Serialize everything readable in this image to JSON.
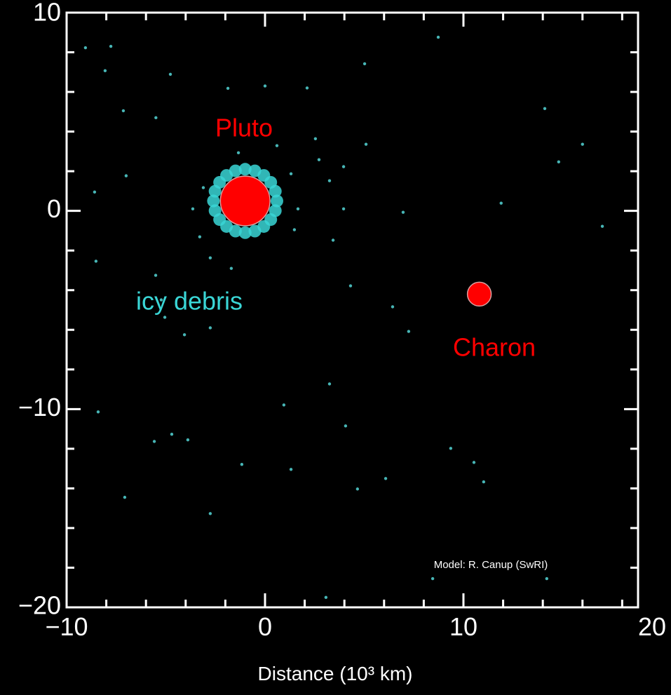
{
  "chart_data": {
    "type": "scatter",
    "xlabel": "Distance (10³ km)",
    "xlim": [
      -10,
      18.8
    ],
    "ylim": [
      -20,
      10
    ],
    "xticks": [
      {
        "value": -10,
        "label": "−10"
      },
      0,
      10,
      20
    ],
    "yticks": [
      {
        "value": -20,
        "label": "−20"
      },
      {
        "value": -10,
        "label": "−10"
      },
      0,
      10
    ],
    "xminorticks": [
      -8,
      -6,
      -4,
      -2,
      2,
      4,
      6,
      8,
      12,
      14,
      16,
      18
    ],
    "yminorticks": [
      -18,
      -16,
      -14,
      -12,
      -8,
      -6,
      -4,
      -2,
      2,
      4,
      6,
      8
    ],
    "series": [
      {
        "color": "#4fc9c9",
        "x": [
          -9.05,
          -7.77,
          -8.06,
          -4.77,
          -7.14,
          -5.5,
          -1.87,
          0,
          2.12,
          5.09,
          5.02,
          8.73,
          14.1,
          16.0,
          14.8,
          11.9,
          17.0,
          -8.59,
          -7.0,
          -8.52,
          -5.51,
          -3.29,
          -2.76,
          -4.06,
          -5.05,
          -8.41,
          -4.7,
          -5.58,
          -3.89,
          -7.07,
          -2.76,
          -1.17,
          1.31,
          0.95,
          3.25,
          4.06,
          4.66,
          6.08,
          9.36,
          10.53,
          11.02,
          7.24,
          6.43,
          4.31,
          3.43,
          3.96,
          6.96,
          3.07,
          14.2,
          8.45,
          3.96,
          2.54,
          2.72,
          1.66,
          1.48,
          -1.7,
          -5.23,
          -2.76,
          -3.64,
          -3.11,
          -1.34,
          0.6,
          1.31,
          3.25
        ],
        "values": [
          8.23,
          8.3,
          7.07,
          6.89,
          5.05,
          4.7,
          6.18,
          6.3,
          6.2,
          3.36,
          7.42,
          8.76,
          5.16,
          3.36,
          2.47,
          0.39,
          -0.78,
          0.95,
          1.77,
          -2.54,
          -3.25,
          -1.31,
          -5.9,
          -6.25,
          -5.37,
          -10.14,
          -11.27,
          -11.63,
          -11.55,
          -14.45,
          -15.27,
          -12.79,
          -13.04,
          -9.79,
          -8.73,
          -10.85,
          -14.03,
          -13.5,
          -11.98,
          -12.69,
          -13.67,
          -6.08,
          -4.84,
          -3.78,
          -1.48,
          0.1,
          -0.07,
          -19.5,
          -18.55,
          -18.55,
          2.23,
          3.64,
          2.58,
          0.1,
          -0.95,
          -2.9,
          -4.49,
          -2.37,
          0.1,
          1.17,
          2.93,
          3.29,
          1.87,
          1.52
        ]
      },
      {
        "color": "#3ad6d6",
        "x": [
          0.6,
          0.52,
          0.29,
          -0.06,
          -0.51,
          -1.0,
          -1.49,
          -1.94,
          -2.29,
          -2.52,
          -2.6,
          -2.52,
          -2.29,
          -1.94,
          -1.49,
          -1.0,
          -0.51,
          -0.06,
          0.29,
          0.52
        ],
        "values": [
          0.5,
          0.99,
          1.44,
          1.79,
          2.02,
          2.1,
          2.02,
          1.79,
          1.44,
          0.99,
          0.5,
          0.01,
          -0.44,
          -0.79,
          -1.02,
          -1.1,
          -1.02,
          -0.79,
          -0.44,
          0.01
        ]
      }
    ],
    "bodies": [
      {
        "label": "Pluto",
        "x": -1.0,
        "y": 0.5,
        "size": 1.25,
        "color": "#ff0000"
      },
      {
        "label": "Charon",
        "x": 10.8,
        "y": -4.2,
        "size": 0.6,
        "color": "#ff0000"
      }
    ],
    "debris_label": "icy debris",
    "credit": "Model: R. Canup (SwRI)"
  }
}
